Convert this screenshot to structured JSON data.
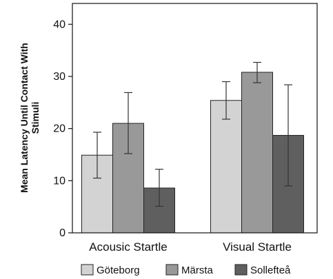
{
  "chart_data": {
    "type": "bar",
    "ylabel_lines": [
      "Mean Latency Until Contact With",
      "Stimuli"
    ],
    "categories": [
      "Acousic Startle",
      "Visual Startle"
    ],
    "series": [
      {
        "name": "Göteborg",
        "color": "#d3d3d3",
        "values": [
          14.9,
          25.4
        ],
        "error_low": [
          10.5,
          21.8
        ],
        "error_high": [
          19.3,
          29.0
        ]
      },
      {
        "name": "Märsta",
        "color": "#999999",
        "values": [
          21.0,
          30.8
        ],
        "error_low": [
          15.2,
          28.8
        ],
        "error_high": [
          26.9,
          32.7
        ]
      },
      {
        "name": "Sollefteå",
        "color": "#5f5f5f",
        "values": [
          8.6,
          18.7
        ],
        "error_low": [
          5.1,
          9.0
        ],
        "error_high": [
          12.2,
          28.4
        ]
      }
    ],
    "yticks": [
      0,
      10,
      20,
      30,
      40
    ],
    "ylim": [
      0,
      44.0
    ],
    "grid": false,
    "legend_position": "bottom"
  }
}
